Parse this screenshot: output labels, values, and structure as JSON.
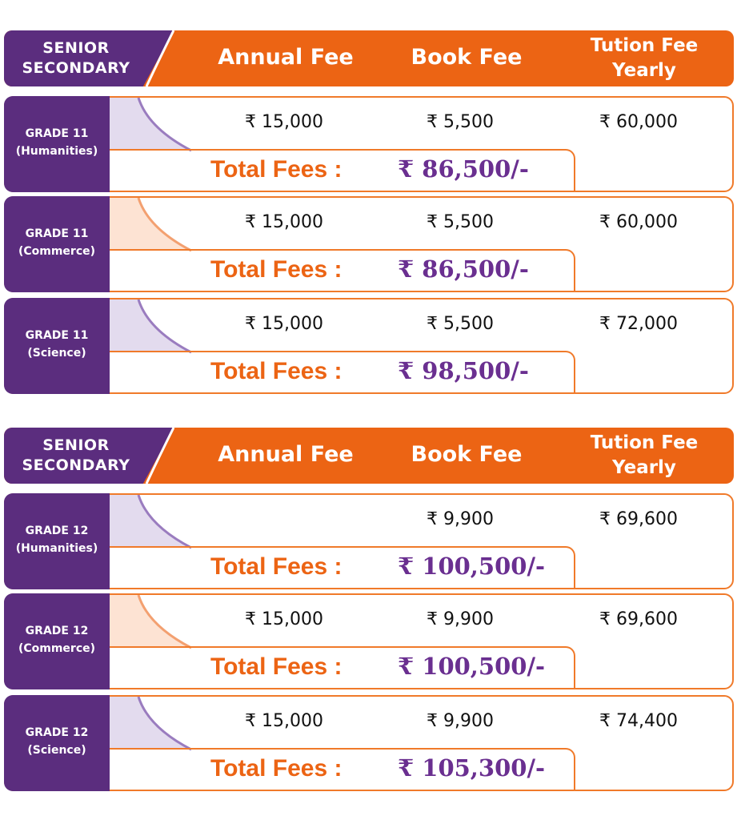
{
  "blocks": [
    {
      "header": {
        "label_line1": "SENIOR",
        "label_line2": "SECONDARY",
        "col_annual": "Annual Fee",
        "col_book": "Book Fee",
        "col_tuition_line1": "Tution Fee",
        "col_tuition_line2": "Yearly"
      },
      "rows": [
        {
          "grade": "GRADE 11",
          "stream": "(Humanities)",
          "annual": "₹ 15,000",
          "book": "₹ 5,500",
          "tuition": "₹ 60,000",
          "total_label": "Total Fees :",
          "total": "₹ 86,500/-",
          "swoosh": "purple"
        },
        {
          "grade": "GRADE 11",
          "stream": "(Commerce)",
          "annual": "₹ 15,000",
          "book": "₹ 5,500",
          "tuition": "₹ 60,000",
          "total_label": "Total Fees :",
          "total": "₹ 86,500/-",
          "swoosh": "orange"
        },
        {
          "grade": "GRADE 11",
          "stream": "(Science)",
          "annual": "₹ 15,000",
          "book": "₹ 5,500",
          "tuition": "₹ 72,000",
          "total_label": "Total Fees :",
          "total": "₹ 98,500/-",
          "swoosh": "purple"
        }
      ]
    },
    {
      "header": {
        "label_line1": "SENIOR",
        "label_line2": "SECONDARY",
        "col_annual": "Annual Fee",
        "col_book": "Book Fee",
        "col_tuition_line1": "Tution Fee",
        "col_tuition_line2": "Yearly"
      },
      "rows": [
        {
          "grade": "GRADE 12",
          "stream": "(Humanities)",
          "annual": "",
          "book": "₹ 9,900",
          "tuition": "₹ 69,600",
          "total_label": "Total Fees :",
          "total": "₹ 100,500/-",
          "swoosh": "purple"
        },
        {
          "grade": "GRADE 12",
          "stream": "(Commerce)",
          "annual": "₹ 15,000",
          "book": "₹ 9,900",
          "tuition": "₹ 69,600",
          "total_label": "Total Fees :",
          "total": "₹ 100,500/-",
          "swoosh": "orange"
        },
        {
          "grade": "GRADE 12",
          "stream": "(Science)",
          "annual": "₹ 15,000",
          "book": "₹ 9,900",
          "tuition": "₹ 74,400",
          "total_label": "Total Fees :",
          "total": "₹ 105,300/-",
          "swoosh": "purple"
        }
      ]
    }
  ],
  "colors": {
    "orange": "#ec6414",
    "purple": "#5b2d7e",
    "total_value": "#6a2f90",
    "swoosh_purple_fill": "#e3dbee",
    "swoosh_purple_line": "#9a7cbf",
    "swoosh_orange_fill": "#fde3d3",
    "swoosh_orange_line": "#f3a070"
  }
}
